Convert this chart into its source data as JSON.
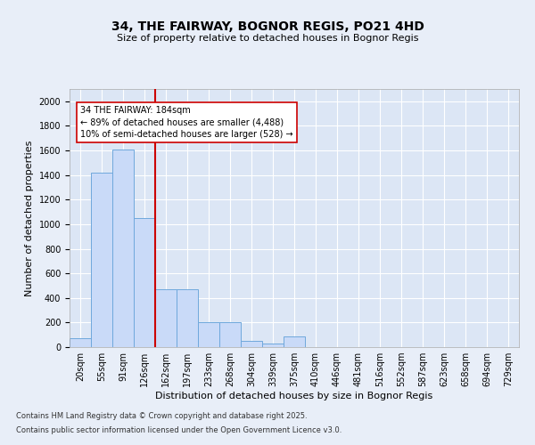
{
  "title1": "34, THE FAIRWAY, BOGNOR REGIS, PO21 4HD",
  "title2": "Size of property relative to detached houses in Bognor Regis",
  "xlabel": "Distribution of detached houses by size in Bognor Regis",
  "ylabel": "Number of detached properties",
  "categories": [
    "20sqm",
    "55sqm",
    "91sqm",
    "126sqm",
    "162sqm",
    "197sqm",
    "233sqm",
    "268sqm",
    "304sqm",
    "339sqm",
    "375sqm",
    "410sqm",
    "446sqm",
    "481sqm",
    "516sqm",
    "552sqm",
    "587sqm",
    "623sqm",
    "658sqm",
    "694sqm",
    "729sqm"
  ],
  "values": [
    75,
    1420,
    1610,
    1050,
    470,
    470,
    200,
    200,
    50,
    30,
    90,
    0,
    0,
    0,
    0,
    0,
    0,
    0,
    0,
    0,
    0
  ],
  "bar_color": "#c9daf8",
  "bar_edge_color": "#6fa8dc",
  "vline_x_idx": 4,
  "vline_color": "#cc0000",
  "annotation_text": "34 THE FAIRWAY: 184sqm\n← 89% of detached houses are smaller (4,488)\n10% of semi-detached houses are larger (528) →",
  "annotation_box_color": "#ffffff",
  "annotation_box_edge": "#cc0000",
  "ylim": [
    0,
    2100
  ],
  "yticks": [
    0,
    200,
    400,
    600,
    800,
    1000,
    1200,
    1400,
    1600,
    1800,
    2000
  ],
  "bg_color": "#e8eef8",
  "plot_bg": "#dce6f5",
  "footer1": "Contains HM Land Registry data © Crown copyright and database right 2025.",
  "footer2": "Contains public sector information licensed under the Open Government Licence v3.0.",
  "title_fontsize": 10,
  "subtitle_fontsize": 8,
  "ylabel_fontsize": 8,
  "xlabel_fontsize": 8,
  "tick_fontsize": 7,
  "footer_fontsize": 6
}
